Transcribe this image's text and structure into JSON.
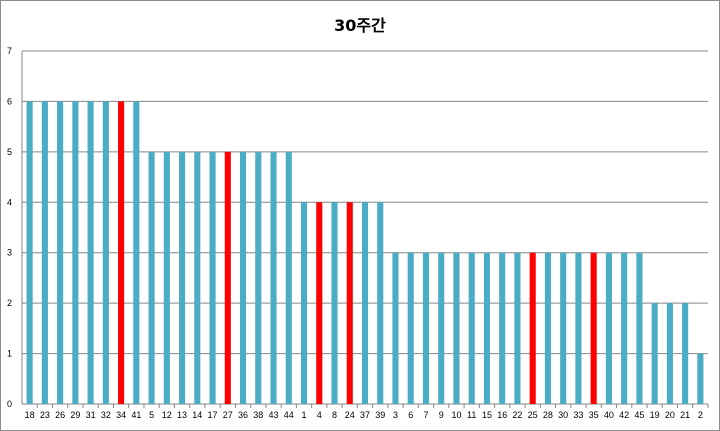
{
  "chart_data": {
    "type": "bar",
    "title": "30주간",
    "xlabel": "",
    "ylabel": "",
    "ylim": [
      0,
      7
    ],
    "yticks": [
      0,
      1,
      2,
      3,
      4,
      5,
      6,
      7
    ],
    "grid": true,
    "legend": "none",
    "colors": {
      "default": "#4bacc6",
      "highlight": "#ff0000",
      "grid": "#868686",
      "axis": "#868686"
    },
    "categories": [
      "18",
      "23",
      "26",
      "29",
      "31",
      "32",
      "34",
      "41",
      "5",
      "12",
      "13",
      "14",
      "17",
      "27",
      "36",
      "38",
      "43",
      "44",
      "1",
      "4",
      "8",
      "24",
      "37",
      "39",
      "3",
      "6",
      "7",
      "9",
      "10",
      "11",
      "15",
      "16",
      "22",
      "25",
      "28",
      "30",
      "33",
      "35",
      "40",
      "42",
      "45",
      "19",
      "20",
      "21",
      "2"
    ],
    "values": [
      6,
      6,
      6,
      6,
      6,
      6,
      6,
      6,
      5,
      5,
      5,
      5,
      5,
      5,
      5,
      5,
      5,
      5,
      4,
      4,
      4,
      4,
      4,
      4,
      3,
      3,
      3,
      3,
      3,
      3,
      3,
      3,
      3,
      3,
      3,
      3,
      3,
      3,
      3,
      3,
      3,
      2,
      2,
      2,
      1
    ],
    "highlighted": [
      "34",
      "27",
      "4",
      "24",
      "25",
      "35"
    ]
  }
}
